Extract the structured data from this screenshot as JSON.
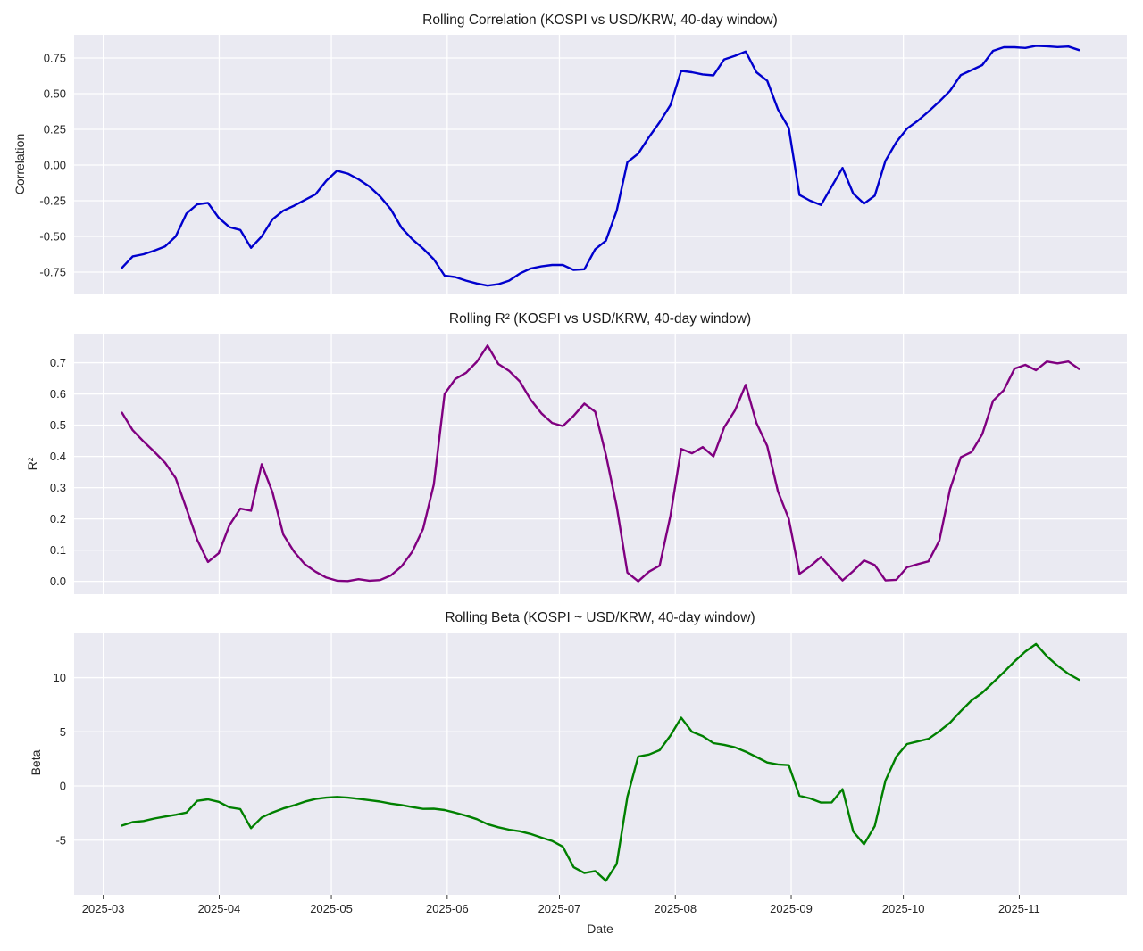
{
  "figure": {
    "xlabel": "Date",
    "x_tick_labels": [
      "2025-03",
      "2025-04",
      "2025-05",
      "2025-06",
      "2025-07",
      "2025-08",
      "2025-09",
      "2025-10",
      "2025-11"
    ],
    "axes_background": "#eaeaf2",
    "grid_color": "#ffffff",
    "text_color": "#262626",
    "title_color": "#1a1a1a"
  },
  "chart_data": [
    {
      "type": "line",
      "title": "Rolling Correlation (KOSPI vs USD/KRW, 40-day window)",
      "ylabel": "Correlation",
      "color": "#0000cd",
      "x_start": "2025-03-06",
      "x_end": "2025-11-17",
      "ylim": [
        -0.906,
        0.9125
      ],
      "grid": true,
      "ytick_values": [
        0.75,
        0.5,
        0.25,
        0.0,
        -0.25,
        -0.5,
        -0.75
      ],
      "ytick_labels": [
        "0.75",
        "0.50",
        "0.25",
        "0.00",
        "-0.25",
        "-0.50",
        "-0.75"
      ],
      "values": [
        -0.72,
        -0.64,
        -0.625,
        -0.6,
        -0.57,
        -0.5,
        -0.34,
        -0.275,
        -0.265,
        -0.37,
        -0.435,
        -0.455,
        -0.58,
        -0.5,
        -0.38,
        -0.32,
        -0.285,
        -0.245,
        -0.205,
        -0.11,
        -0.04,
        -0.06,
        -0.1,
        -0.15,
        -0.22,
        -0.31,
        -0.44,
        -0.52,
        -0.585,
        -0.66,
        -0.775,
        -0.785,
        -0.81,
        -0.83,
        -0.845,
        -0.835,
        -0.81,
        -0.76,
        -0.725,
        -0.71,
        -0.7,
        -0.7,
        -0.735,
        -0.73,
        -0.59,
        -0.53,
        -0.32,
        0.02,
        0.08,
        0.195,
        0.3,
        0.42,
        0.66,
        0.65,
        0.635,
        0.628,
        0.74,
        0.765,
        0.795,
        0.65,
        0.59,
        0.39,
        0.26,
        -0.21,
        -0.25,
        -0.28,
        -0.15,
        -0.02,
        -0.2,
        -0.27,
        -0.215,
        0.03,
        0.16,
        0.255,
        0.31,
        0.375,
        0.445,
        0.52,
        0.63,
        0.665,
        0.7,
        0.8,
        0.825,
        0.825,
        0.82,
        0.835,
        0.832,
        0.826,
        0.83,
        0.805
      ]
    },
    {
      "type": "line",
      "title": "Rolling R² (KOSPI vs USD/KRW, 40-day window)",
      "ylabel": "R²",
      "color": "#800080",
      "x_start": "2025-03-06",
      "x_end": "2025-11-17",
      "ylim": [
        -0.041,
        0.793
      ],
      "grid": true,
      "ytick_values": [
        0.7,
        0.6,
        0.5,
        0.4,
        0.3,
        0.2,
        0.1,
        0.0
      ],
      "ytick_labels": [
        "0.7",
        "0.6",
        "0.5",
        "0.4",
        "0.3",
        "0.2",
        "0.1",
        "0.0"
      ],
      "values": [
        0.54,
        0.484,
        0.448,
        0.415,
        0.38,
        0.33,
        0.233,
        0.133,
        0.062,
        0.09,
        0.18,
        0.233,
        0.226,
        0.375,
        0.285,
        0.15,
        0.095,
        0.055,
        0.031,
        0.012,
        0.002,
        0.001,
        0.007,
        0.002,
        0.004,
        0.019,
        0.048,
        0.095,
        0.168,
        0.31,
        0.6,
        0.648,
        0.668,
        0.703,
        0.755,
        0.696,
        0.674,
        0.64,
        0.582,
        0.538,
        0.507,
        0.497,
        0.53,
        0.569,
        0.543,
        0.405,
        0.24,
        0.028,
        0.0,
        0.031,
        0.05,
        0.21,
        0.424,
        0.41,
        0.43,
        0.4,
        0.493,
        0.547,
        0.629,
        0.507,
        0.433,
        0.288,
        0.2,
        0.024,
        0.048,
        0.078,
        0.04,
        0.003,
        0.033,
        0.067,
        0.052,
        0.003,
        0.005,
        0.045,
        0.055,
        0.064,
        0.13,
        0.295,
        0.397,
        0.414,
        0.471,
        0.578,
        0.612,
        0.681,
        0.693,
        0.676,
        0.704,
        0.698,
        0.704,
        0.68
      ]
    },
    {
      "type": "line",
      "title": "Rolling Beta (KOSPI ~ USD/KRW, 40-day window)",
      "ylabel": "Beta",
      "color": "#008000",
      "x_start": "2025-03-06",
      "x_end": "2025-11-17",
      "ylim": [
        -10.04,
        14.16
      ],
      "grid": true,
      "ytick_values": [
        10,
        5,
        0,
        -5
      ],
      "ytick_labels": [
        "10",
        "5",
        "0",
        "-5"
      ],
      "values": [
        -3.65,
        -3.33,
        -3.23,
        -3.0,
        -2.82,
        -2.66,
        -2.45,
        -1.37,
        -1.23,
        -1.46,
        -1.97,
        -2.13,
        -3.89,
        -2.9,
        -2.44,
        -2.07,
        -1.78,
        -1.45,
        -1.2,
        -1.08,
        -1.01,
        -1.08,
        -1.18,
        -1.31,
        -1.44,
        -1.63,
        -1.76,
        -1.95,
        -2.11,
        -2.1,
        -2.22,
        -2.47,
        -2.74,
        -3.06,
        -3.52,
        -3.81,
        -4.03,
        -4.18,
        -4.43,
        -4.76,
        -5.07,
        -5.6,
        -7.5,
        -8.03,
        -7.85,
        -8.74,
        -7.2,
        -1.0,
        2.72,
        2.9,
        3.3,
        4.65,
        6.3,
        5.0,
        4.6,
        3.95,
        3.8,
        3.57,
        3.16,
        2.68,
        2.17,
        1.99,
        1.92,
        -0.9,
        -1.15,
        -1.53,
        -1.51,
        -0.3,
        -4.2,
        -5.37,
        -3.7,
        0.5,
        2.7,
        3.87,
        4.11,
        4.35,
        5.05,
        5.84,
        6.9,
        7.9,
        8.6,
        9.55,
        10.5,
        11.5,
        12.4,
        13.1,
        11.97,
        11.1,
        10.35,
        9.8
      ]
    }
  ]
}
